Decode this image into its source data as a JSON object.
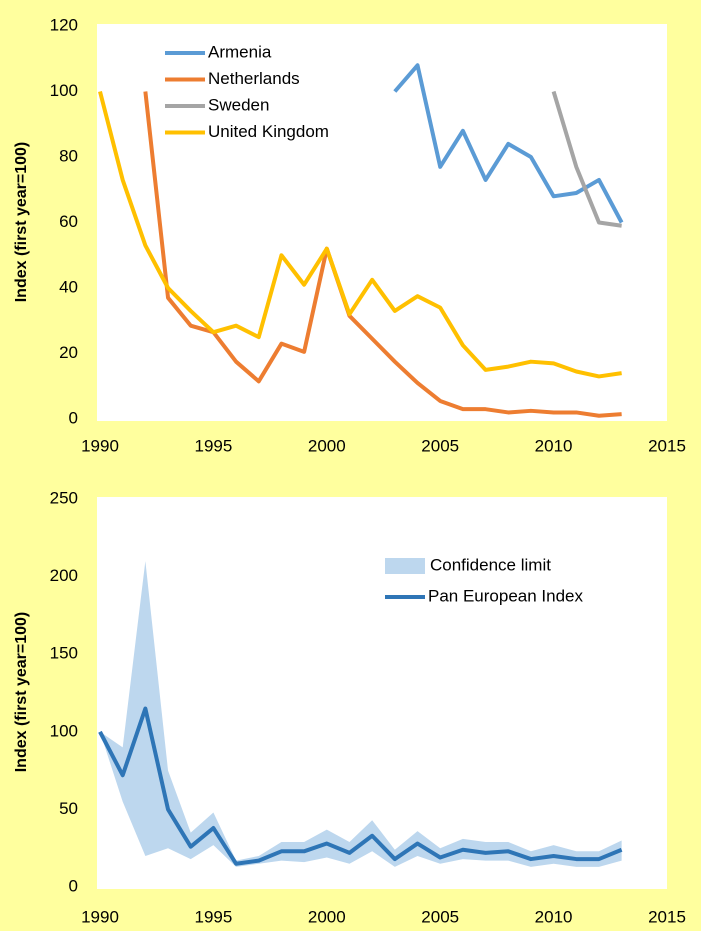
{
  "chart_data": [
    {
      "type": "line",
      "y_label": "Index (first year=100)",
      "x": [
        1990,
        1991,
        1992,
        1993,
        1994,
        1995,
        1996,
        1997,
        1998,
        1999,
        2000,
        2001,
        2002,
        2003,
        2004,
        2005,
        2006,
        2007,
        2008,
        2009,
        2010,
        2011,
        2012,
        2013
      ],
      "series": [
        {
          "name": "Armenia",
          "color": "#5B9BD5",
          "values": [
            null,
            null,
            null,
            null,
            null,
            null,
            null,
            null,
            null,
            null,
            null,
            null,
            null,
            100,
            108,
            77,
            88,
            73,
            84,
            80,
            68,
            69,
            73,
            60
          ]
        },
        {
          "name": "Netherlands",
          "color": "#ED7D31",
          "values": [
            null,
            null,
            100,
            37,
            28.5,
            26.5,
            17.5,
            11.5,
            23,
            20.5,
            52,
            31.5,
            24.5,
            17.5,
            11,
            5.5,
            3,
            3,
            2,
            2.5,
            2,
            2,
            1,
            1.5
          ]
        },
        {
          "name": "Sweden",
          "color": "#A5A5A5",
          "values": [
            null,
            null,
            null,
            null,
            null,
            null,
            null,
            null,
            null,
            null,
            null,
            null,
            null,
            null,
            null,
            null,
            null,
            null,
            null,
            null,
            100,
            77,
            60,
            59
          ]
        },
        {
          "name": "United Kingdom",
          "color": "#FFC000",
          "values": [
            100,
            73,
            53,
            40,
            33,
            26.5,
            28.5,
            25,
            50,
            41,
            52,
            32,
            42.5,
            33,
            37.5,
            34,
            22.5,
            15,
            16,
            17.5,
            17,
            14.5,
            13,
            14
          ]
        }
      ],
      "xlim": [
        1990,
        2015
      ],
      "xticks": [
        1990,
        1995,
        2000,
        2005,
        2010,
        2015
      ],
      "ylim": [
        0,
        120
      ],
      "yticks": [
        0,
        20,
        40,
        60,
        80,
        100,
        120
      ],
      "legend": "upper-left"
    },
    {
      "type": "line",
      "y_label": "Index (first year=100)",
      "x": [
        1990,
        1991,
        1992,
        1993,
        1994,
        1995,
        1996,
        1997,
        1998,
        1999,
        2000,
        2001,
        2002,
        2003,
        2004,
        2005,
        2006,
        2007,
        2008,
        2009,
        2010,
        2011,
        2012,
        2013
      ],
      "band": {
        "name": "Confidence limit",
        "color": "#BDD7EE",
        "lower": [
          100,
          55,
          20,
          25,
          18,
          27,
          13,
          15,
          17,
          16,
          19,
          15,
          23,
          13,
          20,
          15,
          18,
          17,
          17,
          13,
          15,
          13,
          13,
          17
        ],
        "upper": [
          100,
          90,
          210,
          75,
          35,
          48,
          17,
          20,
          29,
          29,
          37,
          29,
          43,
          24,
          36,
          25,
          31,
          29,
          29,
          23,
          27,
          23,
          23,
          30
        ]
      },
      "series": [
        {
          "name": "Pan European Index",
          "color": "#2E75B6",
          "values": [
            100,
            72,
            115,
            50,
            26,
            38,
            15,
            17,
            23,
            23,
            28,
            22,
            33,
            18,
            28,
            19,
            24,
            22,
            23,
            18,
            20,
            18,
            18,
            24
          ]
        }
      ],
      "xlim": [
        1990,
        2015
      ],
      "xticks": [
        1990,
        1995,
        2000,
        2005,
        2010,
        2015
      ],
      "ylim": [
        0,
        250
      ],
      "yticks": [
        0,
        50,
        100,
        150,
        200,
        250
      ],
      "legend": "center-right"
    }
  ]
}
